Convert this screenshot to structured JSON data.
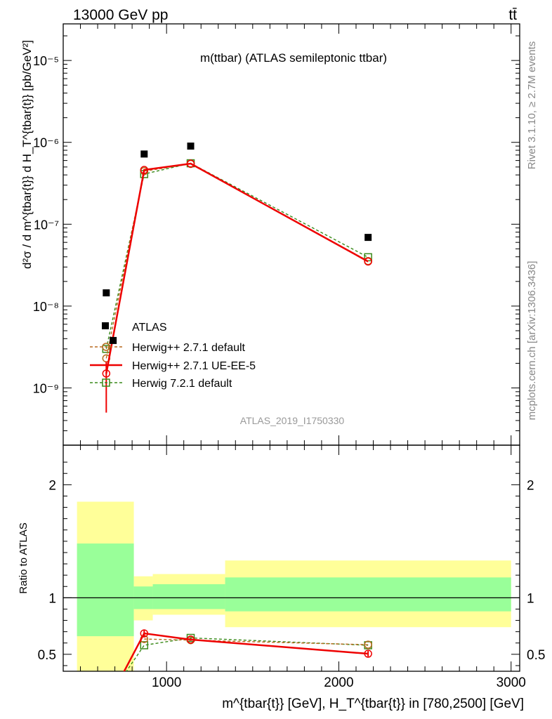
{
  "header": {
    "left": "13000 GeV pp",
    "right": "tt̄",
    "side_rivet": "Rivet 3.1.10, ≥ 2.7M events",
    "side_site": "mcplots.cern.ch [arXiv:1306.3436]"
  },
  "chart_data": [
    {
      "type": "scatter",
      "panel": "main",
      "title": "m(ttbar) (ATLAS semileptonic ttbar)",
      "watermark": "ATLAS_2019_I1750330",
      "ylabel": "d²σ / d m^{tbar{t}} d H_T^{tbar{t}} [pb/GeV²]",
      "yscale": "log",
      "ylim": [
        2e-10,
        2.8e-05
      ],
      "xlim": [
        400,
        3050
      ],
      "ytick_labels": [
        "10⁻⁹",
        "10⁻⁸",
        "10⁻⁷",
        "10⁻⁶",
        "10⁻⁵"
      ],
      "ytick_values": [
        1e-09,
        1e-08,
        1e-07,
        1e-06,
        1e-05
      ],
      "legend_position": "lower-left",
      "series": [
        {
          "name": "ATLAS",
          "style": "data",
          "color": "#000000",
          "x": [
            650,
            690,
            870,
            1140,
            2170
          ],
          "y": [
            1.45e-08,
            3.8e-09,
            7.2e-07,
            9e-07,
            6.9e-08
          ]
        },
        {
          "name": "Herwig++ 2.7.1 default",
          "style": "dashed-circle",
          "color": "#b86a1e",
          "x": [
            650,
            870,
            1140,
            2170
          ],
          "y": [
            2.3e-09,
            4.45e-07,
            5.45e-07,
            3.55e-08
          ]
        },
        {
          "name": "Herwig++ 2.7.1 UE-EE-5",
          "style": "solid-circle",
          "color": "#ee0000",
          "x": [
            650,
            870,
            1140,
            2170
          ],
          "y": [
            1.5e-09,
            4.6e-07,
            5.5e-07,
            3.5e-08
          ],
          "yerr_low": [
            1e-09,
            0,
            0,
            0
          ],
          "yerr_high": [
            6e-10,
            0,
            0,
            0
          ]
        },
        {
          "name": "Herwig 7.2.1 default",
          "style": "dashed-square",
          "color": "#3a8a1a",
          "x": [
            650,
            870,
            1140,
            2170
          ],
          "y": [
            3e-09,
            4.1e-07,
            5.55e-07,
            3.95e-08
          ]
        }
      ]
    },
    {
      "type": "area",
      "panel": "ratio",
      "ylabel": "Ratio to ATLAS",
      "xlabel": "m^{tbar{t}} [GeV], H_T^{tbar{t}} in [780,2500] [GeV]",
      "ylim": [
        0.35,
        2.35
      ],
      "xlim": [
        400,
        3050
      ],
      "xtick_labels": [
        "1000",
        "2000",
        "3000"
      ],
      "xtick_values": [
        1000,
        2000,
        3000
      ],
      "ytick_labels": [
        "0.5",
        "1",
        "2"
      ],
      "ytick_values": [
        0.5,
        1,
        2
      ],
      "bands": {
        "bins": [
          [
            480,
            810
          ],
          [
            810,
            920
          ],
          [
            920,
            1340
          ],
          [
            1340,
            3000
          ]
        ],
        "yellow": [
          [
            0.0,
            1.85
          ],
          [
            0.8,
            1.19
          ],
          [
            0.85,
            1.21
          ],
          [
            0.74,
            1.33
          ]
        ],
        "green": [
          [
            0.66,
            1.48
          ],
          [
            0.9,
            1.1
          ],
          [
            0.9,
            1.12
          ],
          [
            0.88,
            1.18
          ]
        ],
        "yellow_color": "#ffff99",
        "green_color": "#99ff99"
      },
      "series": [
        {
          "name": "Herwig++ 2.7.1 default",
          "style": "dashed-circle",
          "color": "#b86a1e",
          "x": [
            870,
            1140,
            2170
          ],
          "y": [
            0.635,
            0.625,
            0.585
          ]
        },
        {
          "name": "Herwig++ 2.7.1 UE-EE-5",
          "style": "solid-circle",
          "color": "#ee0000",
          "x": [
            650,
            870,
            1140,
            2170
          ],
          "y": [
            0.05,
            0.685,
            0.63,
            0.505
          ],
          "yerr": [
            0,
            0.035,
            0.01,
            0.025
          ]
        },
        {
          "name": "Herwig 7.2.1 default",
          "style": "dashed-square",
          "color": "#3a8a1a",
          "x": [
            650,
            870,
            1140,
            2170
          ],
          "y": [
            0.09,
            0.58,
            0.645,
            0.58
          ]
        }
      ]
    }
  ]
}
